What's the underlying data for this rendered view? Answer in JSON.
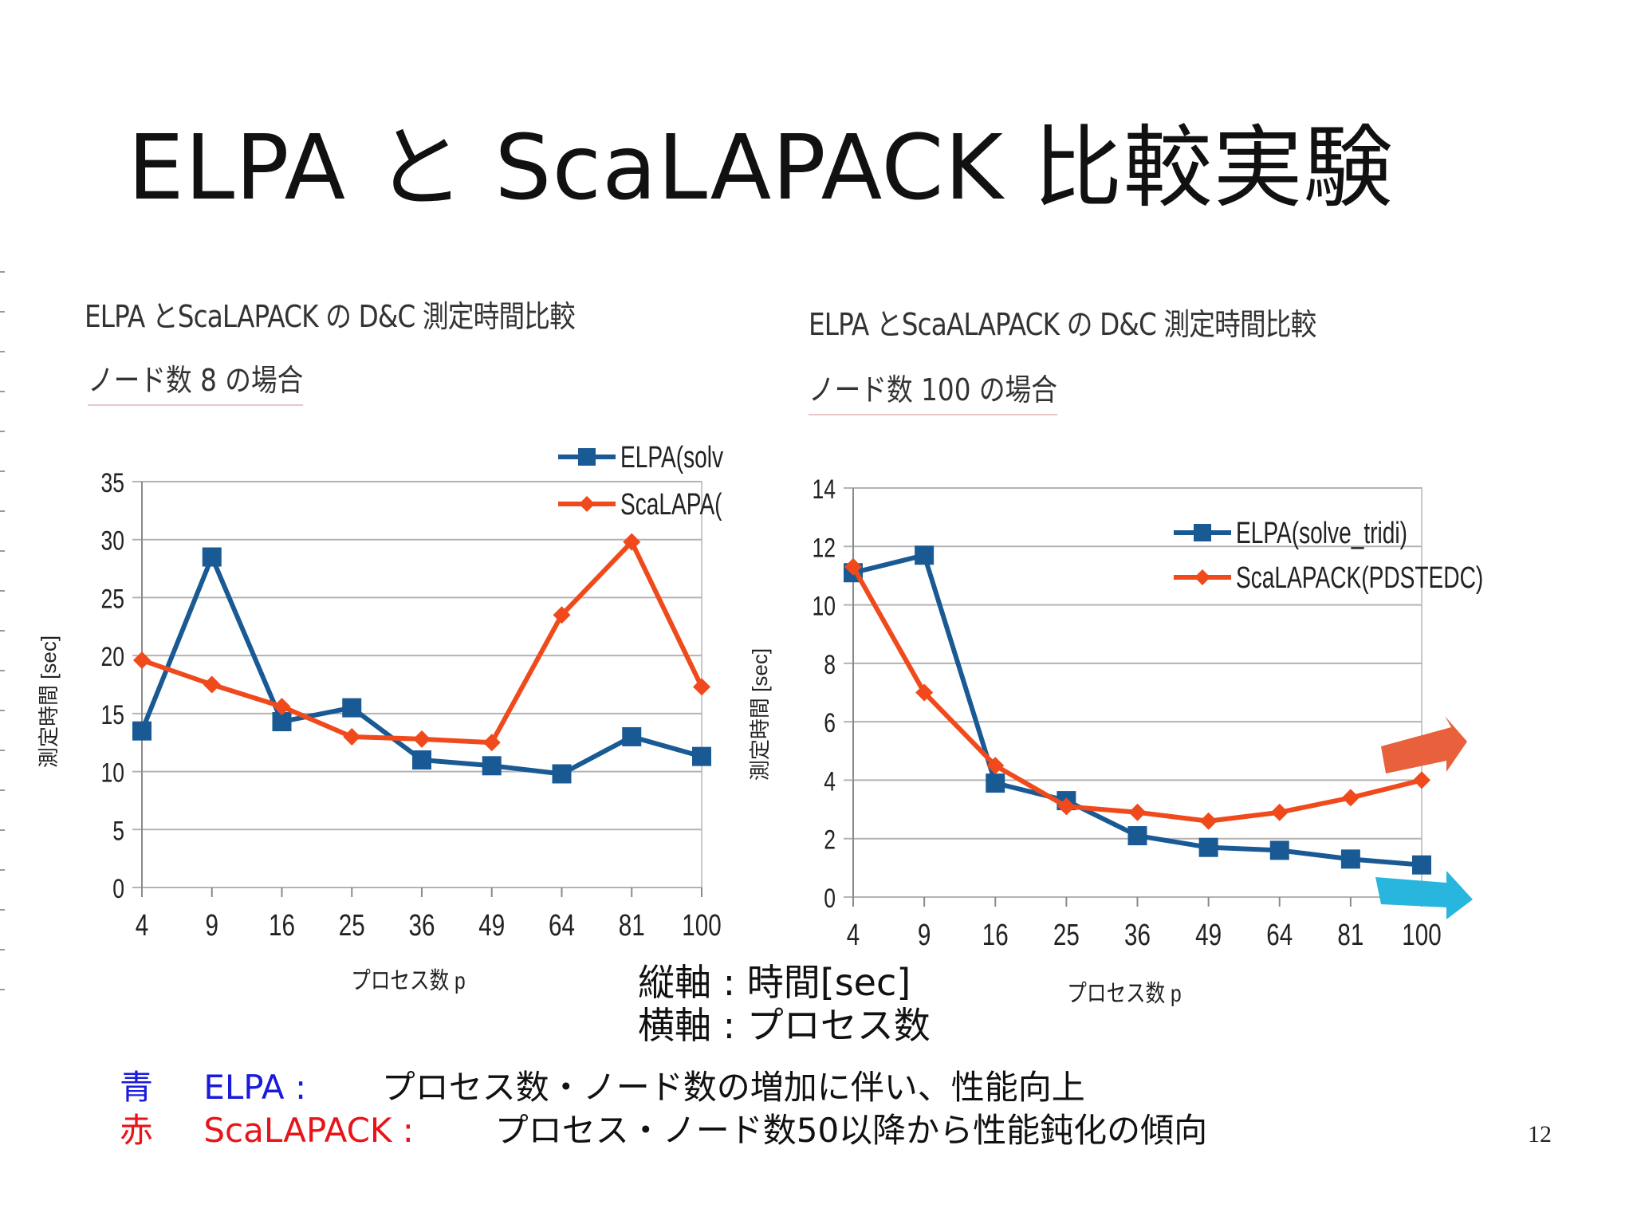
{
  "slide": {
    "title": "ELPA と ScaLAPACK 比較実験",
    "page_number": "12"
  },
  "axis_note": {
    "vertical": "縦軸 :  時間[sec]",
    "horizontal": "横軸 :  プロセス数"
  },
  "summary": {
    "blue_word": "青",
    "blue_name": "ELPA :",
    "blue_text": "プロセス数・ノード数の増加に伴い、性能向上",
    "red_word": "赤",
    "red_name": "ScaLAPACK :",
    "red_text": "プロセス・ノード数50以降から性能鈍化の傾向"
  },
  "colors": {
    "elpa": "#1a5a94",
    "scalapack": "#f04a1c",
    "blue_text": "#1a1adc",
    "red_text": "#e8141a",
    "arrow_red": "#e8603c",
    "arrow_blue": "#29b6de"
  },
  "chart_data": [
    {
      "type": "line",
      "title": "ELPA とScaLAPACK の D&C 測定時間比較",
      "subtitle": "ノード数 8 の場合",
      "xlabel": "プロセス数 p",
      "ylabel": "測定時間 [sec]",
      "categories": [
        "4",
        "9",
        "16",
        "25",
        "36",
        "49",
        "64",
        "81",
        "100"
      ],
      "ylim": [
        0,
        35
      ],
      "yticks": [
        0,
        5,
        10,
        15,
        20,
        25,
        30,
        35
      ],
      "grid": true,
      "legend_position": "top-right",
      "series": [
        {
          "name": "ELPA(solv",
          "color": "#1a5a94",
          "marker": "square",
          "values": [
            13.5,
            28.5,
            14.3,
            15.5,
            11.0,
            10.5,
            9.8,
            13.0,
            11.3
          ]
        },
        {
          "name": "ScaLAPA(",
          "color": "#f04a1c",
          "marker": "diamond",
          "values": [
            19.6,
            17.5,
            15.6,
            13.0,
            12.8,
            12.5,
            23.5,
            29.8,
            17.3
          ]
        }
      ]
    },
    {
      "type": "line",
      "title": "ELPA とScaALAPACK の D&C 測定時間比較",
      "subtitle": "ノード数 100 の場合",
      "xlabel": "プロセス数 p",
      "ylabel": "測定時間 [sec]",
      "categories": [
        "4",
        "9",
        "16",
        "25",
        "36",
        "49",
        "64",
        "81",
        "100"
      ],
      "ylim": [
        0,
        14
      ],
      "yticks": [
        0,
        2,
        4,
        6,
        8,
        10,
        12,
        14
      ],
      "grid": true,
      "legend_position": "top-right",
      "series": [
        {
          "name": "ELPA(solve_tridi)",
          "color": "#1a5a94",
          "marker": "square",
          "values": [
            11.1,
            11.7,
            3.9,
            3.3,
            2.1,
            1.7,
            1.6,
            1.3,
            1.1
          ]
        },
        {
          "name": "ScaLAPACK(PDSTEDC)",
          "color": "#f04a1c",
          "marker": "diamond",
          "values": [
            11.3,
            7.0,
            4.5,
            3.1,
            2.9,
            2.6,
            2.9,
            3.4,
            4.0
          ]
        }
      ]
    }
  ]
}
